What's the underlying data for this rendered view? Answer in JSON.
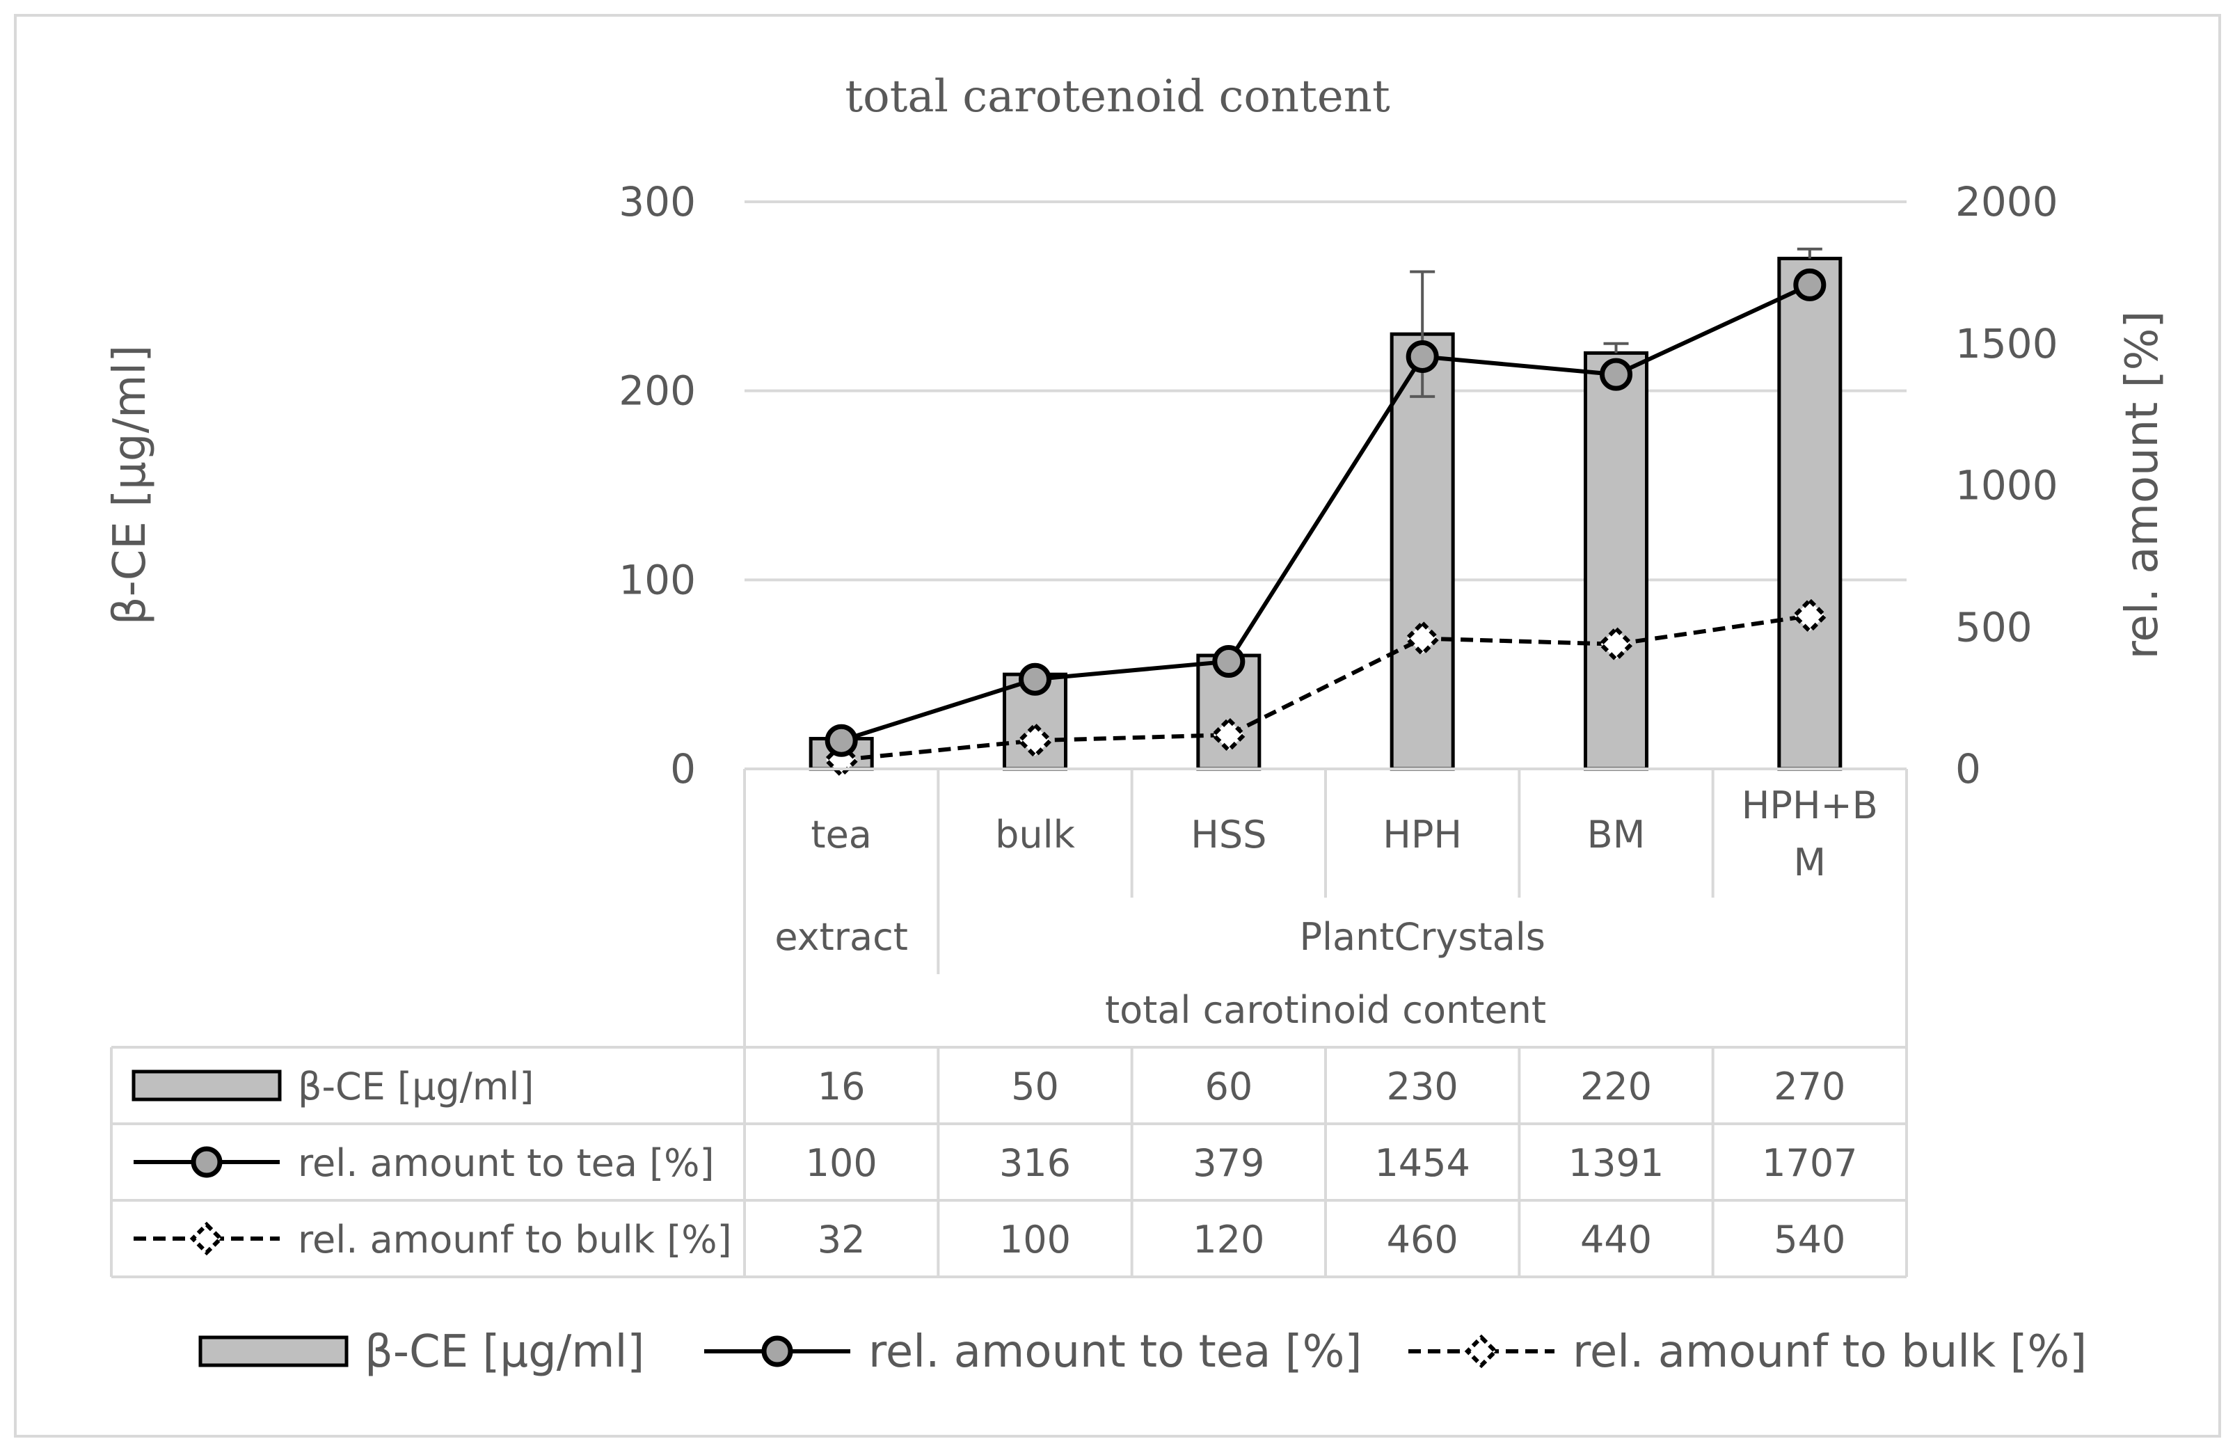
{
  "chart_data": {
    "type": "bar",
    "title": "total carotenoid content",
    "categories": [
      "tea",
      "bulk",
      "HSS",
      "HPH",
      "BM",
      "HPH+B M"
    ],
    "category_lines": [
      [
        "tea"
      ],
      [
        "bulk"
      ],
      [
        "HSS"
      ],
      [
        "HPH"
      ],
      [
        "BM"
      ],
      [
        "HPH+B",
        "M"
      ]
    ],
    "groups": [
      {
        "label": "extract",
        "span": [
          0,
          0
        ]
      },
      {
        "label": "PlantCrystals",
        "span": [
          1,
          5
        ]
      }
    ],
    "super_group": "total carotinoid content",
    "ylabel": "β-CE [µg/ml]",
    "ylabel_right": "rel. amount [%]",
    "ylim": [
      0,
      300
    ],
    "ylim_right": [
      0,
      2000
    ],
    "yticks": [
      "0",
      "100",
      "200",
      "300"
    ],
    "yticks_right": [
      "0",
      "500",
      "1000",
      "1500",
      "2000"
    ],
    "grid": true,
    "legend_position": "bottom",
    "series": [
      {
        "name": "β-CE [µg/ml]",
        "kind": "bar",
        "axis": "left",
        "values": [
          16,
          50,
          60,
          230,
          220,
          270
        ],
        "labels": [
          "16",
          "50",
          "60",
          "230",
          "220",
          "270"
        ],
        "error_upper": [
          null,
          null,
          null,
          33,
          5,
          5
        ],
        "error_lower": [
          null,
          null,
          null,
          33,
          null,
          null
        ],
        "color": "#bfbfbf"
      },
      {
        "name": "rel. amount to tea [%]",
        "kind": "line-circle",
        "axis": "right",
        "values": [
          100,
          316,
          379,
          1454,
          1391,
          1707
        ],
        "labels": [
          "100",
          "316",
          "379",
          "1454",
          "1391",
          "1707"
        ],
        "color": "#000000"
      },
      {
        "name": "rel. amounf to bulk [%]",
        "kind": "dashed-diamond",
        "axis": "right",
        "values": [
          32,
          100,
          120,
          460,
          440,
          540
        ],
        "labels": [
          "32",
          "100",
          "120",
          "460",
          "440",
          "540"
        ],
        "color": "#000000"
      }
    ]
  }
}
